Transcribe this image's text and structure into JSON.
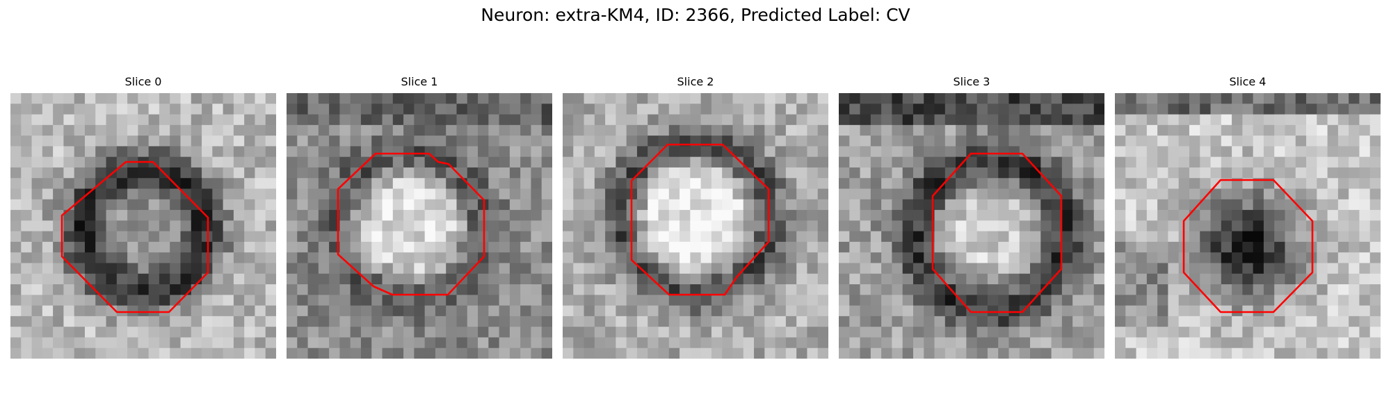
{
  "figure": {
    "suptitle": "Neuron: extra-KM4, ID: 2366, Predicted Label: CV",
    "contour_color": "#ff0000",
    "colormap": "gray"
  },
  "slices": [
    {
      "label": "Slice 0"
    },
    {
      "label": "Slice 1"
    },
    {
      "label": "Slice 2"
    },
    {
      "label": "Slice 3"
    },
    {
      "label": "Slice 4"
    }
  ]
}
